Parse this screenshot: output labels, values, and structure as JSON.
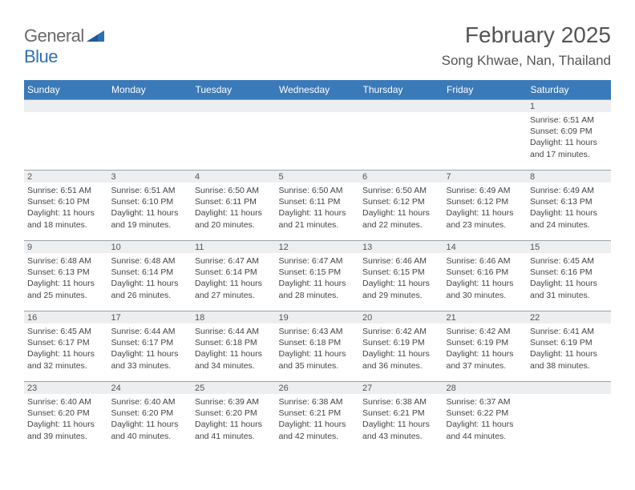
{
  "logo": {
    "text_gray": "General",
    "text_blue": "Blue",
    "triangle_color": "#2f6fb3"
  },
  "header": {
    "month_title": "February 2025",
    "location": "Song Khwae, Nan, Thailand"
  },
  "colors": {
    "header_bg": "#3a7ab8",
    "header_text": "#ffffff",
    "daynum_bg": "#eceef0",
    "daynum_border": "#9aa3ab",
    "body_text": "#444444",
    "title_text": "#555555",
    "page_bg": "#ffffff"
  },
  "fonts": {
    "family": "Arial, Helvetica, sans-serif",
    "month_title_size": 28,
    "location_size": 17,
    "day_header_size": 12,
    "daynum_size": 11,
    "cell_body_size": 10.5
  },
  "day_headers": [
    "Sunday",
    "Monday",
    "Tuesday",
    "Wednesday",
    "Thursday",
    "Friday",
    "Saturday"
  ],
  "weeks": [
    [
      {
        "date": "",
        "lines": []
      },
      {
        "date": "",
        "lines": []
      },
      {
        "date": "",
        "lines": []
      },
      {
        "date": "",
        "lines": []
      },
      {
        "date": "",
        "lines": []
      },
      {
        "date": "",
        "lines": []
      },
      {
        "date": "1",
        "lines": [
          "Sunrise: 6:51 AM",
          "Sunset: 6:09 PM",
          "Daylight: 11 hours and 17 minutes."
        ]
      }
    ],
    [
      {
        "date": "2",
        "lines": [
          "Sunrise: 6:51 AM",
          "Sunset: 6:10 PM",
          "Daylight: 11 hours and 18 minutes."
        ]
      },
      {
        "date": "3",
        "lines": [
          "Sunrise: 6:51 AM",
          "Sunset: 6:10 PM",
          "Daylight: 11 hours and 19 minutes."
        ]
      },
      {
        "date": "4",
        "lines": [
          "Sunrise: 6:50 AM",
          "Sunset: 6:11 PM",
          "Daylight: 11 hours and 20 minutes."
        ]
      },
      {
        "date": "5",
        "lines": [
          "Sunrise: 6:50 AM",
          "Sunset: 6:11 PM",
          "Daylight: 11 hours and 21 minutes."
        ]
      },
      {
        "date": "6",
        "lines": [
          "Sunrise: 6:50 AM",
          "Sunset: 6:12 PM",
          "Daylight: 11 hours and 22 minutes."
        ]
      },
      {
        "date": "7",
        "lines": [
          "Sunrise: 6:49 AM",
          "Sunset: 6:12 PM",
          "Daylight: 11 hours and 23 minutes."
        ]
      },
      {
        "date": "8",
        "lines": [
          "Sunrise: 6:49 AM",
          "Sunset: 6:13 PM",
          "Daylight: 11 hours and 24 minutes."
        ]
      }
    ],
    [
      {
        "date": "9",
        "lines": [
          "Sunrise: 6:48 AM",
          "Sunset: 6:13 PM",
          "Daylight: 11 hours and 25 minutes."
        ]
      },
      {
        "date": "10",
        "lines": [
          "Sunrise: 6:48 AM",
          "Sunset: 6:14 PM",
          "Daylight: 11 hours and 26 minutes."
        ]
      },
      {
        "date": "11",
        "lines": [
          "Sunrise: 6:47 AM",
          "Sunset: 6:14 PM",
          "Daylight: 11 hours and 27 minutes."
        ]
      },
      {
        "date": "12",
        "lines": [
          "Sunrise: 6:47 AM",
          "Sunset: 6:15 PM",
          "Daylight: 11 hours and 28 minutes."
        ]
      },
      {
        "date": "13",
        "lines": [
          "Sunrise: 6:46 AM",
          "Sunset: 6:15 PM",
          "Daylight: 11 hours and 29 minutes."
        ]
      },
      {
        "date": "14",
        "lines": [
          "Sunrise: 6:46 AM",
          "Sunset: 6:16 PM",
          "Daylight: 11 hours and 30 minutes."
        ]
      },
      {
        "date": "15",
        "lines": [
          "Sunrise: 6:45 AM",
          "Sunset: 6:16 PM",
          "Daylight: 11 hours and 31 minutes."
        ]
      }
    ],
    [
      {
        "date": "16",
        "lines": [
          "Sunrise: 6:45 AM",
          "Sunset: 6:17 PM",
          "Daylight: 11 hours and 32 minutes."
        ]
      },
      {
        "date": "17",
        "lines": [
          "Sunrise: 6:44 AM",
          "Sunset: 6:17 PM",
          "Daylight: 11 hours and 33 minutes."
        ]
      },
      {
        "date": "18",
        "lines": [
          "Sunrise: 6:44 AM",
          "Sunset: 6:18 PM",
          "Daylight: 11 hours and 34 minutes."
        ]
      },
      {
        "date": "19",
        "lines": [
          "Sunrise: 6:43 AM",
          "Sunset: 6:18 PM",
          "Daylight: 11 hours and 35 minutes."
        ]
      },
      {
        "date": "20",
        "lines": [
          "Sunrise: 6:42 AM",
          "Sunset: 6:19 PM",
          "Daylight: 11 hours and 36 minutes."
        ]
      },
      {
        "date": "21",
        "lines": [
          "Sunrise: 6:42 AM",
          "Sunset: 6:19 PM",
          "Daylight: 11 hours and 37 minutes."
        ]
      },
      {
        "date": "22",
        "lines": [
          "Sunrise: 6:41 AM",
          "Sunset: 6:19 PM",
          "Daylight: 11 hours and 38 minutes."
        ]
      }
    ],
    [
      {
        "date": "23",
        "lines": [
          "Sunrise: 6:40 AM",
          "Sunset: 6:20 PM",
          "Daylight: 11 hours and 39 minutes."
        ]
      },
      {
        "date": "24",
        "lines": [
          "Sunrise: 6:40 AM",
          "Sunset: 6:20 PM",
          "Daylight: 11 hours and 40 minutes."
        ]
      },
      {
        "date": "25",
        "lines": [
          "Sunrise: 6:39 AM",
          "Sunset: 6:20 PM",
          "Daylight: 11 hours and 41 minutes."
        ]
      },
      {
        "date": "26",
        "lines": [
          "Sunrise: 6:38 AM",
          "Sunset: 6:21 PM",
          "Daylight: 11 hours and 42 minutes."
        ]
      },
      {
        "date": "27",
        "lines": [
          "Sunrise: 6:38 AM",
          "Sunset: 6:21 PM",
          "Daylight: 11 hours and 43 minutes."
        ]
      },
      {
        "date": "28",
        "lines": [
          "Sunrise: 6:37 AM",
          "Sunset: 6:22 PM",
          "Daylight: 11 hours and 44 minutes."
        ]
      },
      {
        "date": "",
        "lines": []
      }
    ]
  ]
}
